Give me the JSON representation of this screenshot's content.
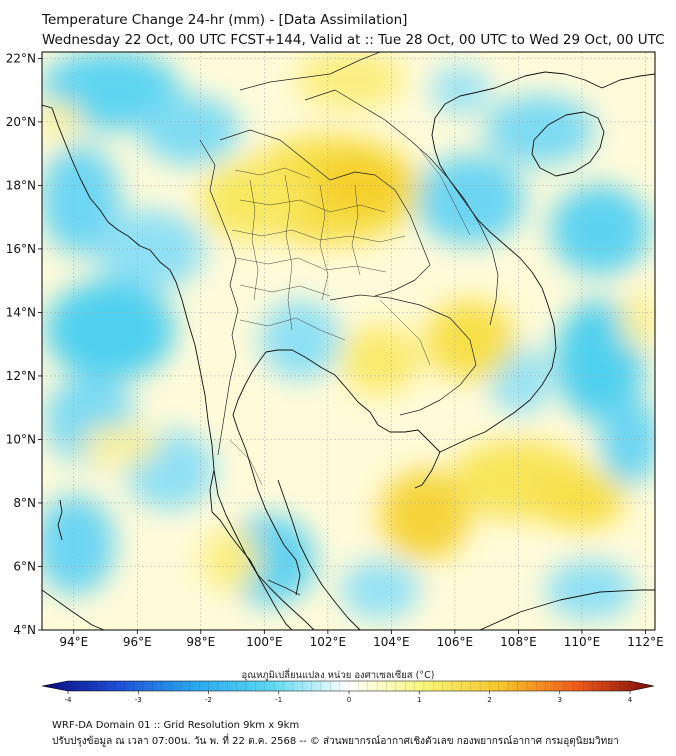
{
  "title_line1": "Temperature Change 24-hr (mm) - [Data Assimilation]",
  "title_line2": "Wednesday 22 Oct, 00 UTC FCST+144, Valid at :: Tue 28 Oct, 00 UTC to Wed 29 Oct, 00 UTC",
  "map": {
    "lon_range": [
      93,
      112.3
    ],
    "lat_range": [
      4,
      22.2
    ],
    "lat_ticks": [
      "4°N",
      "6°N",
      "8°N",
      "10°N",
      "12°N",
      "14°N",
      "16°N",
      "18°N",
      "20°N",
      "22°N"
    ],
    "lon_ticks": [
      "94°E",
      "96°E",
      "98°E",
      "100°E",
      "102°E",
      "104°E",
      "106°E",
      "108°E",
      "110°E",
      "112°E"
    ],
    "gridlines": true,
    "colors": {
      "warm": "#f7e04a",
      "cool": "#4fd0ef",
      "background": "#fffbd9",
      "coastline": "#111111"
    }
  },
  "colorbar": {
    "title": "อุณหภูมิเปลี่ยนแปลง หน่วย องศาเซลเซียส (°C)",
    "ticks": [
      "-4",
      "-3",
      "-2",
      "-1",
      "0",
      "1",
      "2",
      "3",
      "4"
    ],
    "min": -4,
    "max": 4,
    "colors": [
      "#0a0a7a",
      "#1f4fd6",
      "#2aa8ee",
      "#5cd8f2",
      "#ffffff",
      "#f7f57a",
      "#f6c52a",
      "#ef5a1c",
      "#7a0a0a"
    ]
  },
  "footer_line1": "WRF-DA Domain 01 :: Grid Resolution 9km x 9km",
  "footer_line2": "ปรับปรุงข้อมูล ณ เวลา 07:00น. วัน พ. ที่ 22 ต.ค. 2568 -- © ส่วนพยากรณ์อากาศเชิงตัวเลข กองพยากรณ์อากาศ กรมอุตุนิยมวิทยา"
}
